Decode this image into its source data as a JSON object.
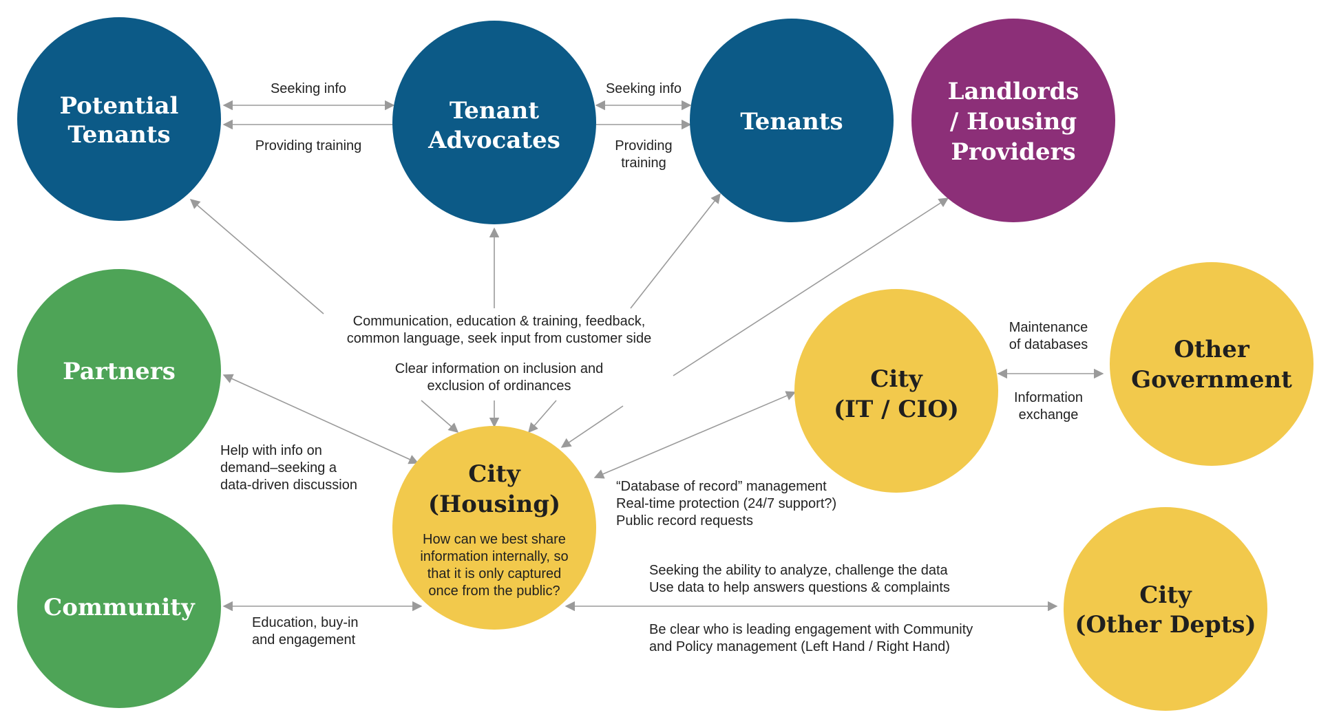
{
  "colors": {
    "blue": "#0c5a87",
    "purple": "#8c2f78",
    "green": "#4ea457",
    "yellow": "#f2c94c",
    "arrow": "#9a9a9a"
  },
  "nodes": {
    "potential_tenants": {
      "lines": [
        "Potential",
        "Tenants"
      ]
    },
    "tenant_advocates": {
      "lines": [
        "Tenant",
        "Advocates"
      ]
    },
    "tenants": {
      "lines": [
        "Tenants"
      ]
    },
    "landlords": {
      "lines": [
        "Landlords",
        "/ Housing",
        "Providers"
      ]
    },
    "partners": {
      "lines": [
        "Partners"
      ]
    },
    "community": {
      "lines": [
        "Community"
      ]
    },
    "city_housing": {
      "lines": [
        "City",
        "(Housing)"
      ],
      "sub": [
        "How can we best share",
        "information internally, so",
        "that it is only captured",
        "once from the public?"
      ]
    },
    "city_it": {
      "lines": [
        "City",
        "(IT / CIO)"
      ]
    },
    "other_government": {
      "lines": [
        "Other",
        "Government"
      ]
    },
    "city_other": {
      "lines": [
        "City",
        "(Other Depts)"
      ]
    }
  },
  "labels": {
    "pt_ta_seeking": [
      "Seeking info"
    ],
    "pt_ta_training": [
      "Providing training"
    ],
    "ta_t_seeking": [
      "Seeking info"
    ],
    "ta_t_training": [
      "Providing",
      "training"
    ],
    "communication": [
      "Communication, education & training, feedback,",
      "common language, seek input from customer side"
    ],
    "clear_info": [
      "Clear information on inclusion and",
      "exclusion of ordinances"
    ],
    "partners_help": [
      "Help with info on",
      "demand–seeking a",
      "data-driven discussion"
    ],
    "maintenance": [
      "Maintenance",
      "of databases"
    ],
    "info_exchange": [
      "Information",
      "exchange"
    ],
    "database_record": [
      "“Database of record” management",
      "Real-time protection (24/7 support?)",
      "Public record requests"
    ],
    "community_edu": [
      "Education, buy-in",
      "and engagement"
    ],
    "seeking_analyze": [
      "Seeking the ability to analyze, challenge the data",
      "Use data to help answers questions & complaints"
    ],
    "be_clear": [
      "Be clear who is leading engagement with Community",
      "and Policy management (Left Hand / Right Hand)"
    ]
  }
}
